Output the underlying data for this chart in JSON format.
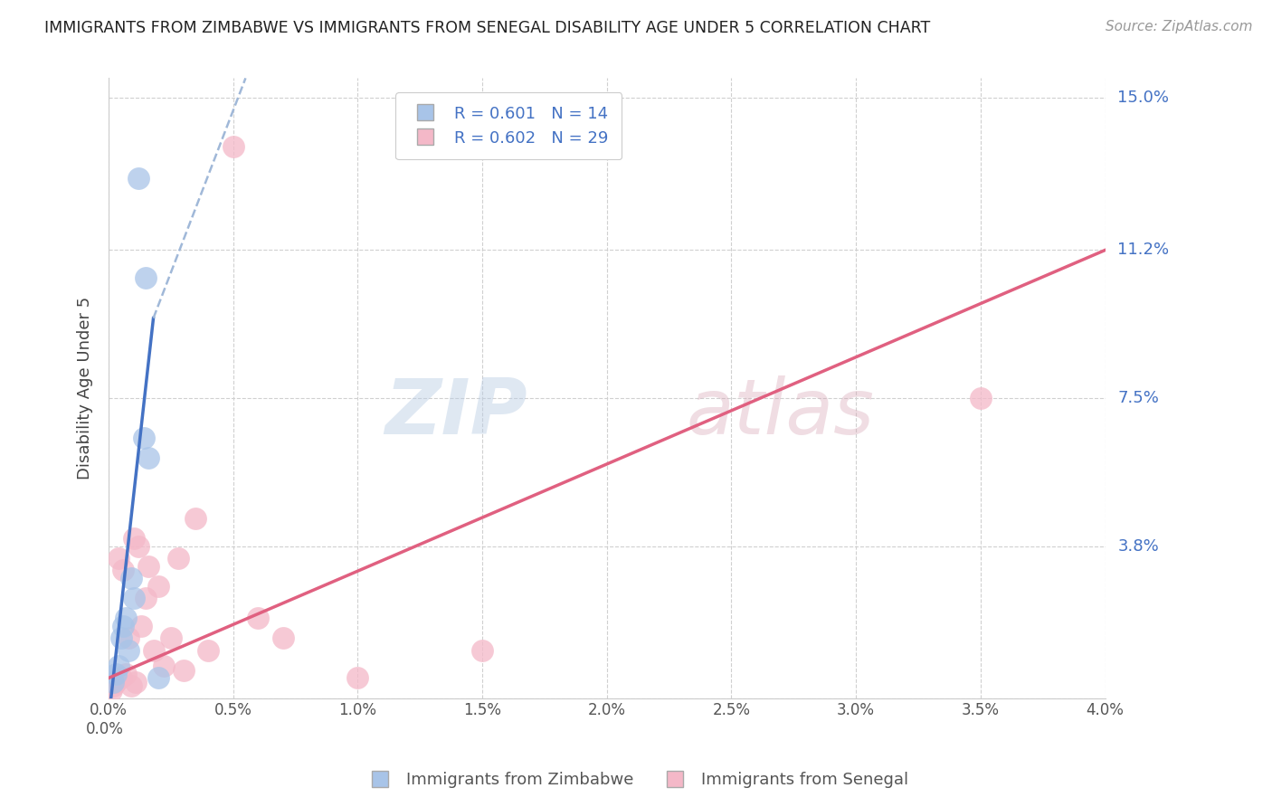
{
  "title": "IMMIGRANTS FROM ZIMBABWE VS IMMIGRANTS FROM SENEGAL DISABILITY AGE UNDER 5 CORRELATION CHART",
  "source": "Source: ZipAtlas.com",
  "ylabel": "Disability Age Under 5",
  "legend_blue_R": "R = 0.601",
  "legend_blue_N": "N = 14",
  "legend_pink_R": "R = 0.602",
  "legend_pink_N": "N = 29",
  "legend_blue_label": "Immigrants from Zimbabwe",
  "legend_pink_label": "Immigrants from Senegal",
  "xlim": [
    0.0,
    4.0
  ],
  "ylim": [
    0.0,
    15.5
  ],
  "ytick_vals": [
    0.0,
    3.8,
    7.5,
    11.2,
    15.0
  ],
  "xtick_vals": [
    0.0,
    0.5,
    1.0,
    1.5,
    2.0,
    2.5,
    3.0,
    3.5,
    4.0
  ],
  "watermark": "ZIPatlas",
  "blue_scatter_color": "#a8c4e8",
  "pink_scatter_color": "#f4b8c8",
  "blue_line_color": "#4472c4",
  "pink_line_color": "#e06080",
  "blue_dash_color": "#a0b8d8",
  "axis_label_color": "#4472c4",
  "grid_color": "#d0d0d0",
  "blue_scatter_x": [
    0.02,
    0.03,
    0.04,
    0.05,
    0.06,
    0.07,
    0.08,
    0.09,
    0.1,
    0.12,
    0.14,
    0.15,
    0.16,
    0.2
  ],
  "blue_scatter_y": [
    0.4,
    0.6,
    0.8,
    1.5,
    1.8,
    2.0,
    1.2,
    3.0,
    2.5,
    13.0,
    6.5,
    10.5,
    6.0,
    0.5
  ],
  "pink_scatter_x": [
    0.01,
    0.02,
    0.03,
    0.04,
    0.05,
    0.06,
    0.07,
    0.08,
    0.09,
    0.1,
    0.11,
    0.12,
    0.13,
    0.15,
    0.16,
    0.18,
    0.2,
    0.22,
    0.25,
    0.28,
    0.3,
    0.35,
    0.4,
    0.5,
    0.6,
    0.7,
    1.0,
    1.5,
    3.5
  ],
  "pink_scatter_y": [
    0.2,
    0.3,
    0.4,
    3.5,
    0.5,
    3.2,
    0.6,
    1.5,
    0.3,
    4.0,
    0.4,
    3.8,
    1.8,
    2.5,
    3.3,
    1.2,
    2.8,
    0.8,
    1.5,
    3.5,
    0.7,
    4.5,
    1.2,
    13.8,
    2.0,
    1.5,
    0.5,
    1.2,
    7.5
  ],
  "blue_solid_x0": 0.01,
  "blue_solid_x1": 0.18,
  "blue_solid_y0": 0.0,
  "blue_solid_y1": 9.5,
  "blue_dash_x0": 0.18,
  "blue_dash_x1": 0.55,
  "blue_dash_y0": 9.5,
  "blue_dash_y1": 15.5,
  "pink_line_x0": 0.0,
  "pink_line_x1": 4.0,
  "pink_line_y0": 0.5,
  "pink_line_y1": 11.2
}
